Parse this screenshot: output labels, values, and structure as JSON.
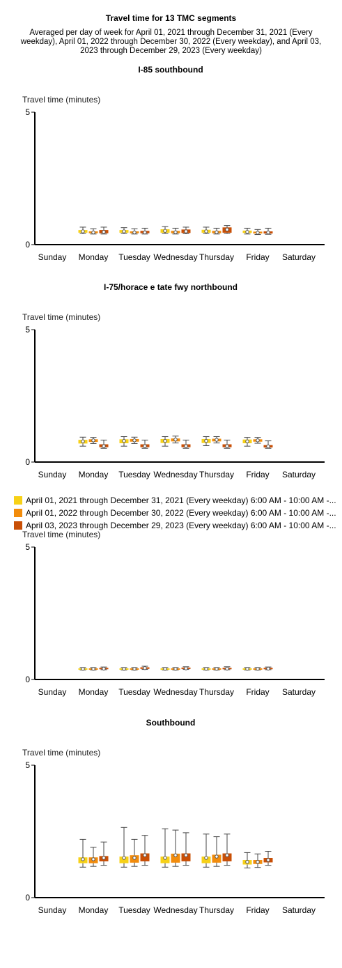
{
  "title": "Travel time for 13 TMC segments",
  "subtitle": "Averaged per day of week for April 01, 2021 through December 31, 2021 (Every weekday), April 01, 2022 through December 30, 2022 (Every weekday), and April 03, 2023 through December 29, 2023 (Every weekday)",
  "legend": [
    {
      "label": "April 01, 2021 through December 31, 2021 (Every weekday) 6:00 AM - 10:00 AM -...",
      "color": "#f7d117"
    },
    {
      "label": "April 01, 2022 through December 30, 2022 (Every weekday) 6:00 AM - 10:00 AM -...",
      "color": "#f28c0c"
    },
    {
      "label": "April 03, 2023 through December 29, 2023 (Every weekday) 6:00 AM - 10:00 AM -...",
      "color": "#c94f06"
    }
  ],
  "chart_data": [
    {
      "type": "box",
      "title": "I-85 southbound",
      "ylabel": "Travel time (minutes)",
      "ylim": [
        0,
        5
      ],
      "yticks": [
        "0",
        "5"
      ],
      "categories": [
        "Sunday",
        "Monday",
        "Tuesday",
        "Wednesday",
        "Thursday",
        "Friday",
        "Saturday"
      ],
      "series": [
        {
          "boxes": [
            null,
            {
              "min": 0.42,
              "q1": 0.45,
              "median": 0.5,
              "q3": 0.55,
              "max": 0.66
            },
            {
              "min": 0.42,
              "q1": 0.45,
              "median": 0.5,
              "q3": 0.55,
              "max": 0.64
            },
            {
              "min": 0.42,
              "q1": 0.45,
              "median": 0.52,
              "q3": 0.58,
              "max": 0.68
            },
            {
              "min": 0.42,
              "q1": 0.45,
              "median": 0.5,
              "q3": 0.56,
              "max": 0.66
            },
            {
              "min": 0.4,
              "q1": 0.44,
              "median": 0.48,
              "q3": 0.53,
              "max": 0.62
            },
            null
          ]
        },
        {
          "boxes": [
            null,
            {
              "min": 0.4,
              "q1": 0.43,
              "median": 0.46,
              "q3": 0.5,
              "max": 0.6
            },
            {
              "min": 0.4,
              "q1": 0.43,
              "median": 0.46,
              "q3": 0.5,
              "max": 0.6
            },
            {
              "min": 0.4,
              "q1": 0.43,
              "median": 0.47,
              "q3": 0.52,
              "max": 0.62
            },
            {
              "min": 0.4,
              "q1": 0.43,
              "median": 0.47,
              "q3": 0.52,
              "max": 0.62
            },
            {
              "min": 0.38,
              "q1": 0.42,
              "median": 0.45,
              "q3": 0.49,
              "max": 0.57
            },
            null
          ]
        },
        {
          "boxes": [
            null,
            {
              "min": 0.4,
              "q1": 0.43,
              "median": 0.48,
              "q3": 0.55,
              "max": 0.66
            },
            {
              "min": 0.4,
              "q1": 0.43,
              "median": 0.46,
              "q3": 0.52,
              "max": 0.62
            },
            {
              "min": 0.41,
              "q1": 0.44,
              "median": 0.5,
              "q3": 0.57,
              "max": 0.66
            },
            {
              "min": 0.42,
              "q1": 0.45,
              "median": 0.57,
              "q3": 0.65,
              "max": 0.72
            },
            {
              "min": 0.39,
              "q1": 0.42,
              "median": 0.46,
              "q3": 0.5,
              "max": 0.62
            },
            null
          ]
        }
      ]
    },
    {
      "type": "box",
      "title": "I-75/horace e tate fwy northbound",
      "ylabel": "Travel time (minutes)",
      "ylim": [
        0,
        5
      ],
      "yticks": [
        "0",
        "5"
      ],
      "categories": [
        "Sunday",
        "Monday",
        "Tuesday",
        "Wednesday",
        "Thursday",
        "Friday",
        "Saturday"
      ],
      "series": [
        {
          "boxes": [
            null,
            {
              "min": 0.6,
              "q1": 0.7,
              "median": 0.78,
              "q3": 0.84,
              "max": 0.94
            },
            {
              "min": 0.6,
              "q1": 0.71,
              "median": 0.8,
              "q3": 0.86,
              "max": 0.96
            },
            {
              "min": 0.6,
              "q1": 0.72,
              "median": 0.8,
              "q3": 0.87,
              "max": 0.96
            },
            {
              "min": 0.62,
              "q1": 0.72,
              "median": 0.8,
              "q3": 0.87,
              "max": 0.96
            },
            {
              "min": 0.6,
              "q1": 0.71,
              "median": 0.78,
              "q3": 0.85,
              "max": 0.93
            },
            null
          ]
        },
        {
          "boxes": [
            null,
            {
              "min": 0.7,
              "q1": 0.76,
              "median": 0.82,
              "q3": 0.86,
              "max": 0.93
            },
            {
              "min": 0.7,
              "q1": 0.77,
              "median": 0.82,
              "q3": 0.87,
              "max": 0.94
            },
            {
              "min": 0.72,
              "q1": 0.78,
              "median": 0.85,
              "q3": 0.89,
              "max": 0.98
            },
            {
              "min": 0.72,
              "q1": 0.78,
              "median": 0.84,
              "q3": 0.88,
              "max": 0.96
            },
            {
              "min": 0.71,
              "q1": 0.77,
              "median": 0.82,
              "q3": 0.86,
              "max": 0.93
            },
            null
          ]
        },
        {
          "boxes": [
            null,
            {
              "min": 0.52,
              "q1": 0.56,
              "median": 0.6,
              "q3": 0.67,
              "max": 0.83
            },
            {
              "min": 0.52,
              "q1": 0.56,
              "median": 0.6,
              "q3": 0.67,
              "max": 0.83
            },
            {
              "min": 0.52,
              "q1": 0.56,
              "median": 0.6,
              "q3": 0.67,
              "max": 0.83
            },
            {
              "min": 0.52,
              "q1": 0.56,
              "median": 0.6,
              "q3": 0.67,
              "max": 0.83
            },
            {
              "min": 0.52,
              "q1": 0.55,
              "median": 0.59,
              "q3": 0.64,
              "max": 0.8
            },
            null
          ]
        }
      ]
    },
    {
      "type": "box",
      "title": "",
      "ylabel": "Travel time (minutes)",
      "ylim": [
        0,
        5
      ],
      "yticks": [
        "0",
        "5"
      ],
      "categories": [
        "Sunday",
        "Monday",
        "Tuesday",
        "Wednesday",
        "Thursday",
        "Friday",
        "Saturday"
      ],
      "series": [
        {
          "boxes": [
            null,
            {
              "min": 0.36,
              "q1": 0.38,
              "median": 0.4,
              "q3": 0.42,
              "max": 0.45
            },
            {
              "min": 0.36,
              "q1": 0.38,
              "median": 0.4,
              "q3": 0.42,
              "max": 0.45
            },
            {
              "min": 0.36,
              "q1": 0.38,
              "median": 0.4,
              "q3": 0.42,
              "max": 0.45
            },
            {
              "min": 0.36,
              "q1": 0.38,
              "median": 0.4,
              "q3": 0.42,
              "max": 0.45
            },
            {
              "min": 0.36,
              "q1": 0.38,
              "median": 0.4,
              "q3": 0.42,
              "max": 0.45
            },
            null
          ]
        },
        {
          "boxes": [
            null,
            {
              "min": 0.36,
              "q1": 0.38,
              "median": 0.4,
              "q3": 0.42,
              "max": 0.45
            },
            {
              "min": 0.36,
              "q1": 0.38,
              "median": 0.4,
              "q3": 0.42,
              "max": 0.45
            },
            {
              "min": 0.36,
              "q1": 0.38,
              "median": 0.4,
              "q3": 0.42,
              "max": 0.45
            },
            {
              "min": 0.36,
              "q1": 0.38,
              "median": 0.4,
              "q3": 0.42,
              "max": 0.45
            },
            {
              "min": 0.36,
              "q1": 0.38,
              "median": 0.4,
              "q3": 0.42,
              "max": 0.45
            },
            null
          ]
        },
        {
          "boxes": [
            null,
            {
              "min": 0.37,
              "q1": 0.39,
              "median": 0.41,
              "q3": 0.44,
              "max": 0.47
            },
            {
              "min": 0.38,
              "q1": 0.4,
              "median": 0.43,
              "q3": 0.46,
              "max": 0.5
            },
            {
              "min": 0.38,
              "q1": 0.4,
              "median": 0.42,
              "q3": 0.45,
              "max": 0.48
            },
            {
              "min": 0.37,
              "q1": 0.39,
              "median": 0.41,
              "q3": 0.44,
              "max": 0.48
            },
            {
              "min": 0.37,
              "q1": 0.39,
              "median": 0.41,
              "q3": 0.44,
              "max": 0.47
            },
            null
          ]
        }
      ]
    },
    {
      "type": "box",
      "title": "Southbound",
      "ylabel": "Travel time (minutes)",
      "ylim": [
        0,
        5
      ],
      "yticks": [
        "0",
        "5"
      ],
      "categories": [
        "Sunday",
        "Monday",
        "Tuesday",
        "Wednesday",
        "Thursday",
        "Friday",
        "Saturday"
      ],
      "series": [
        {
          "boxes": [
            null,
            {
              "min": 1.15,
              "q1": 1.3,
              "median": 1.45,
              "q3": 1.52,
              "max": 2.2
            },
            {
              "min": 1.15,
              "q1": 1.3,
              "median": 1.5,
              "q3": 1.55,
              "max": 2.65
            },
            {
              "min": 1.15,
              "q1": 1.3,
              "median": 1.5,
              "q3": 1.55,
              "max": 2.6
            },
            {
              "min": 1.15,
              "q1": 1.3,
              "median": 1.5,
              "q3": 1.55,
              "max": 2.4
            },
            {
              "min": 1.12,
              "q1": 1.25,
              "median": 1.35,
              "q3": 1.42,
              "max": 1.7
            },
            null
          ]
        },
        {
          "boxes": [
            null,
            {
              "min": 1.18,
              "q1": 1.3,
              "median": 1.45,
              "q3": 1.52,
              "max": 1.9
            },
            {
              "min": 1.18,
              "q1": 1.32,
              "median": 1.5,
              "q3": 1.6,
              "max": 2.2
            },
            {
              "min": 1.18,
              "q1": 1.32,
              "median": 1.6,
              "q3": 1.66,
              "max": 2.55
            },
            {
              "min": 1.18,
              "q1": 1.32,
              "median": 1.55,
              "q3": 1.62,
              "max": 2.3
            },
            {
              "min": 1.14,
              "q1": 1.27,
              "median": 1.35,
              "q3": 1.42,
              "max": 1.65
            },
            null
          ]
        },
        {
          "boxes": [
            null,
            {
              "min": 1.22,
              "q1": 1.37,
              "median": 1.5,
              "q3": 1.57,
              "max": 2.1
            },
            {
              "min": 1.22,
              "q1": 1.37,
              "median": 1.6,
              "q3": 1.67,
              "max": 2.35
            },
            {
              "min": 1.22,
              "q1": 1.37,
              "median": 1.6,
              "q3": 1.67,
              "max": 2.45
            },
            {
              "min": 1.22,
              "q1": 1.37,
              "median": 1.6,
              "q3": 1.67,
              "max": 2.4
            },
            {
              "min": 1.22,
              "q1": 1.33,
              "median": 1.42,
              "q3": 1.5,
              "max": 1.75
            },
            null
          ]
        }
      ]
    }
  ]
}
